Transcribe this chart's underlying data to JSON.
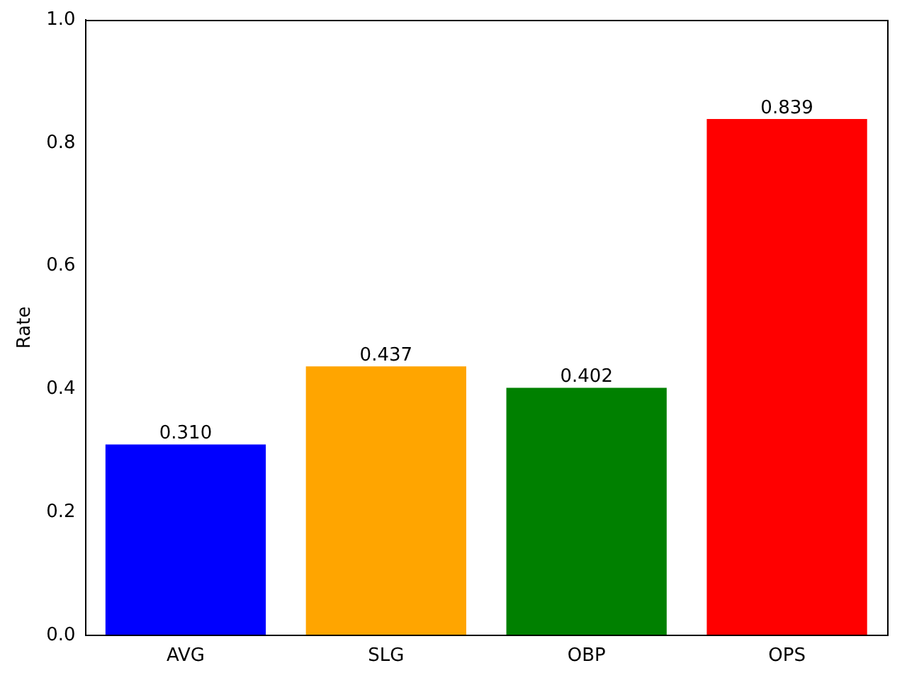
{
  "chart_data": {
    "type": "bar",
    "ylabel": "Rate",
    "categories": [
      "AVG",
      "SLG",
      "OBP",
      "OPS"
    ],
    "values": [
      0.31,
      0.437,
      0.402,
      0.839
    ],
    "value_labels": [
      "0.310",
      "0.437",
      "0.402",
      "0.839"
    ],
    "colors": [
      "#0000ff",
      "#ffa500",
      "#008000",
      "#ff0000"
    ],
    "ylim": [
      0,
      1
    ],
    "yticks": [
      {
        "value": 0,
        "label": "0.0"
      },
      {
        "value": 0.2,
        "label": "0.2"
      },
      {
        "value": 0.4,
        "label": "0.4"
      },
      {
        "value": 0.6,
        "label": "0.6"
      },
      {
        "value": 0.8,
        "label": "0.8"
      },
      {
        "value": 1,
        "label": "1.0"
      }
    ],
    "grid": false,
    "legend": false
  }
}
